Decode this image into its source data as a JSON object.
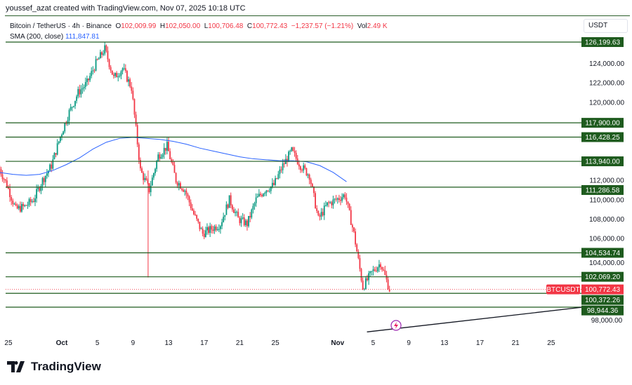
{
  "credit": "youssef_azat created with TradingView.com, Nov 07, 2025 10:18 UTC",
  "legend": {
    "symbol": "Bitcoin / TetherUS · 4h · Binance",
    "o_label": "O",
    "o": "102,009.99",
    "h_label": "H",
    "h": "102,050.00",
    "l_label": "L",
    "l": "100,706.48",
    "c_label": "C",
    "c": "100,772.43",
    "change": "−1,237.57 (−1.21%)",
    "vol_label": "Vol",
    "vol": "2.49 K",
    "sma_label": "SMA (200, close)",
    "sma_value": "111,847.81"
  },
  "currency": "USDT",
  "brand": "TradingView",
  "colors": {
    "up": "#089981",
    "down": "#f23645",
    "level": "#1e5b1e",
    "sma": "#2962ff"
  },
  "chart_data": {
    "type": "candlestick",
    "title": "Bitcoin / TetherUS · 4h · Binance",
    "ylim": [
      97300,
      127000
    ],
    "y_ticks": [
      "124,000.00",
      "122,000.00",
      "120,000.00",
      "112,000.00",
      "110,000.00",
      "108,000.00",
      "106,000.00",
      "104,000.00",
      "98,000.00"
    ],
    "y_tick_values": [
      124000,
      122000,
      120000,
      112000,
      110000,
      108000,
      106000,
      104000,
      98000
    ],
    "x_ticks": [
      "25",
      "Oct",
      "5",
      "9",
      "13",
      "17",
      "21",
      "25",
      "Nov",
      "5",
      "9",
      "13",
      "17",
      "21",
      "25"
    ],
    "x_tick_days": [
      -6,
      0,
      4,
      8,
      12,
      16,
      20,
      24,
      31,
      35,
      39,
      43,
      47,
      51,
      55
    ],
    "daily_close_day_offset_from_oct1": [
      -7,
      -6,
      -5,
      -4,
      -3,
      -2,
      -1,
      0,
      1,
      2,
      3,
      4,
      5,
      6,
      7,
      8,
      9,
      10,
      11,
      12,
      13,
      14,
      15,
      16,
      17,
      18,
      19,
      20,
      21,
      22,
      23,
      24,
      25,
      26,
      27,
      28,
      29,
      30,
      31,
      32,
      33,
      34,
      35,
      36,
      37
    ],
    "daily_close": [
      113500,
      111500,
      109000,
      109300,
      110000,
      112000,
      113500,
      116500,
      119000,
      121000,
      122000,
      124000,
      125500,
      122500,
      123500,
      121500,
      113000,
      111000,
      114500,
      115500,
      112000,
      111000,
      108500,
      106500,
      107000,
      107500,
      110000,
      108000,
      107500,
      110000,
      111000,
      111500,
      113500,
      115000,
      113500,
      112500,
      108000,
      109500,
      110000,
      110500,
      106500,
      101000,
      102500,
      103500,
      100772
    ],
    "flash_low": {
      "day": 9.7,
      "value": 102000
    },
    "sma_200": [
      112800,
      112600,
      112500,
      112600,
      113000,
      113600,
      114300,
      115200,
      115900,
      116300,
      116400,
      116300,
      116200,
      116000,
      115700,
      115300,
      115000,
      114700,
      114400,
      114200,
      114100,
      114000,
      114000,
      113900,
      113500,
      112800,
      111848
    ],
    "sma_day_step": 1.5,
    "levels": [
      {
        "label": "126,199.63",
        "value": 126199.63
      },
      {
        "label": "117,900.00",
        "value": 117900
      },
      {
        "label": "116,428.25",
        "value": 116428.25
      },
      {
        "label": "113,940.00",
        "value": 113940
      },
      {
        "label": "111,286.58",
        "value": 111286.58
      },
      {
        "label": "104,534.74",
        "value": 104534.74
      },
      {
        "label": "102,069.20",
        "value": 102069.2
      },
      {
        "label": "100,372.26",
        "value": 100372.26
      },
      {
        "label": "98,944.36",
        "value": 98944.36
      }
    ],
    "last_price": {
      "symbol": "BTCUSDT",
      "label": "100,772.43",
      "value": 100772.43
    },
    "trendline": {
      "from": {
        "day": 34.3,
        "value": 96400
      },
      "to": {
        "day": 58.5,
        "value": 98944.36
      }
    }
  }
}
